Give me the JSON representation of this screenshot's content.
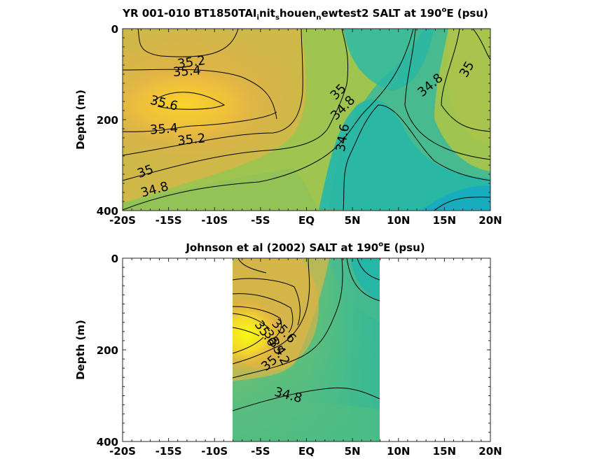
{
  "chart_data": [
    {
      "type": "heatmap",
      "title_main": "YR 001-010 BT1850TAI",
      "title_parts": [
        {
          "t": "YR 001-010 BT1850TAI",
          "s": ""
        },
        {
          "t": "i",
          "s": "sub"
        },
        {
          "t": "nit",
          "s": ""
        },
        {
          "t": "s",
          "s": "sub"
        },
        {
          "t": "houen",
          "s": ""
        },
        {
          "t": "n",
          "s": "sub"
        },
        {
          "t": "ewtest2 SALT at 190",
          "s": ""
        },
        {
          "t": "o",
          "s": "sup"
        },
        {
          "t": "E (psu)",
          "s": ""
        }
      ],
      "ylabel": "Depth (m)",
      "x_ticks": [
        "-20S",
        "-15S",
        "-10S",
        "-5S",
        "EQ",
        "5N",
        "10N",
        "15N",
        "20N"
      ],
      "y_ticks": [
        "0",
        "200",
        "400"
      ],
      "xlim": [
        -20,
        20
      ],
      "ylim": [
        0,
        400
      ],
      "contour_labels": [
        {
          "text": "35.2",
          "x": -12.5,
          "y": 75
        },
        {
          "text": "35.4",
          "x": -13.0,
          "y": 95
        },
        {
          "text": "35.6",
          "x": -15.5,
          "y": 165
        },
        {
          "text": "35.4",
          "x": -15.5,
          "y": 222
        },
        {
          "text": "35.2",
          "x": -12.5,
          "y": 245
        },
        {
          "text": "35",
          "x": -17.5,
          "y": 315
        },
        {
          "text": "34.8",
          "x": -16.5,
          "y": 355
        },
        {
          "text": "35",
          "x": 3.5,
          "y": 140
        },
        {
          "text": "34.8",
          "x": 4.0,
          "y": 175
        },
        {
          "text": "34.6",
          "x": 4.0,
          "y": 240
        },
        {
          "text": "34.8",
          "x": 13.5,
          "y": 125
        },
        {
          "text": "35",
          "x": 17.5,
          "y": 90
        }
      ]
    },
    {
      "type": "heatmap",
      "title_main": "Johnson et al (2002) SALT at 190",
      "title_parts": [
        {
          "t": "Johnson et al (2002) SALT at 190",
          "s": ""
        },
        {
          "t": "o",
          "s": "sup"
        },
        {
          "t": "E (psu)",
          "s": ""
        }
      ],
      "ylabel": "Depth (m)",
      "x_ticks": [
        "-20S",
        "-15S",
        "-10S",
        "-5S",
        "EQ",
        "5N",
        "10N",
        "15N",
        "20N"
      ],
      "y_ticks": [
        "0",
        "200",
        "400"
      ],
      "xlim": [
        -20,
        20
      ],
      "ylim": [
        0,
        400
      ],
      "data_xlim": [
        -8,
        8
      ],
      "contour_labels": [
        {
          "text": "35.6",
          "x": -4.5,
          "y": 165
        },
        {
          "text": "35.4",
          "x": -3.5,
          "y": 185
        },
        {
          "text": "35.2",
          "x": -3.0,
          "y": 205
        },
        {
          "text": "35",
          "x": -4.0,
          "y": 230
        },
        {
          "text": "34.8",
          "x": -2.0,
          "y": 300
        },
        {
          "text": "35.6",
          "x": -2.5,
          "y": 160
        }
      ]
    }
  ]
}
